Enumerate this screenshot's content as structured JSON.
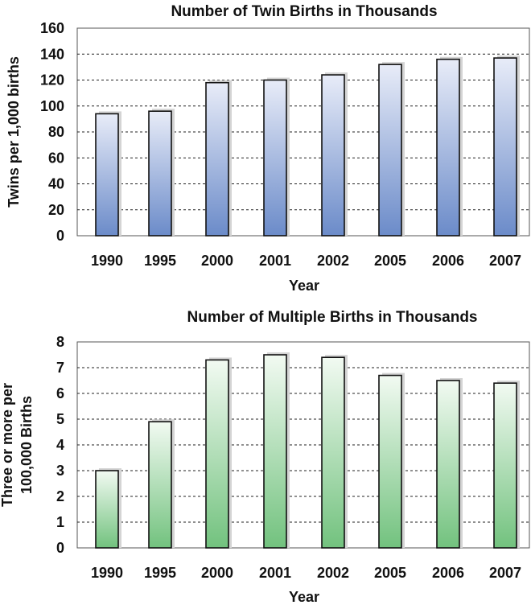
{
  "chart_data": [
    {
      "type": "bar",
      "title": "Number of Twin Births in Thousands",
      "xlabel": "Year",
      "ylabel": "Twins per 1,000 births",
      "categories": [
        "1990",
        "1995",
        "2000",
        "2001",
        "2002",
        "2005",
        "2006",
        "2007"
      ],
      "values": [
        94,
        96,
        118,
        120,
        124,
        132,
        136,
        137
      ],
      "ylim": [
        0,
        160
      ],
      "yticks": [
        "0",
        "20",
        "40",
        "60",
        "80",
        "100",
        "120",
        "140",
        "160"
      ],
      "grid": true,
      "colors": {
        "top": "#e8ecf8",
        "bottom": "#6b8bc9"
      }
    },
    {
      "type": "bar",
      "title": "Number of Multiple Births in Thousands",
      "xlabel": "Year",
      "ylabel": [
        "Three or more per",
        "100,000 Births"
      ],
      "categories": [
        "1990",
        "1995",
        "2000",
        "2001",
        "2002",
        "2005",
        "2006",
        "2007"
      ],
      "values": [
        3.0,
        4.9,
        7.3,
        7.5,
        7.4,
        6.7,
        6.5,
        6.4
      ],
      "ylim": [
        0,
        8
      ],
      "yticks": [
        "0",
        "1",
        "2",
        "3",
        "4",
        "5",
        "6",
        "7",
        "8"
      ],
      "grid": true,
      "colors": {
        "top": "#f2faf2",
        "bottom": "#72c27e"
      }
    }
  ]
}
